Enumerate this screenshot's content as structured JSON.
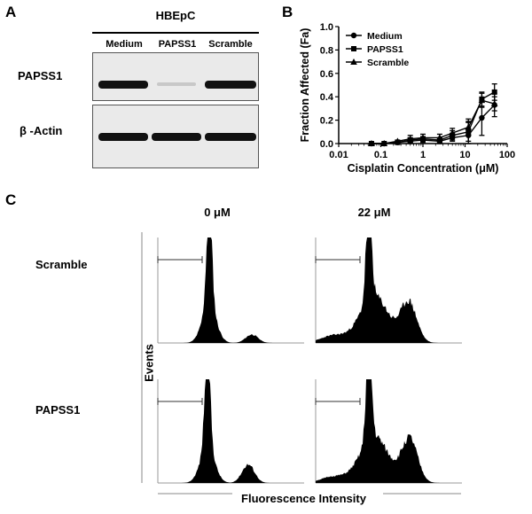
{
  "panel_a": {
    "letter": "A",
    "cell_line": "HBEpC",
    "lanes": [
      "Medium",
      "PAPSS1",
      "Scramble"
    ],
    "rows": [
      "PAPSS1",
      "β -Actin"
    ]
  },
  "panel_b": {
    "letter": "B"
  },
  "panel_c": {
    "letter": "C",
    "columns": [
      "0 μM",
      "22 μM"
    ],
    "rows": [
      "Scramble",
      "PAPSS1"
    ],
    "ylabel": "Events",
    "xlabel": "Fluorescence Intensity"
  },
  "chart_data": {
    "type": "line",
    "title": "",
    "xlabel": "Cisplatin Concentration (μM)",
    "ylabel": "Fraction Affected (Fa)",
    "xscale": "log",
    "xlim": [
      0.01,
      100
    ],
    "ylim": [
      0,
      1.0
    ],
    "xticks": [
      "0.01",
      "0.1",
      "1",
      "10",
      "100"
    ],
    "yticks": [
      "0.0",
      "0.2",
      "0.4",
      "0.6",
      "0.8",
      "1.0"
    ],
    "legend_position": "top-left",
    "series": [
      {
        "name": "Medium",
        "marker": "circle",
        "x": [
          0.06,
          0.12,
          0.25,
          0.5,
          1,
          2.5,
          5,
          12,
          25,
          50
        ],
        "y": [
          0.0,
          0.0,
          0.01,
          0.02,
          0.03,
          0.02,
          0.05,
          0.07,
          0.22,
          0.33
        ],
        "err": [
          0.0,
          0.0,
          0.01,
          0.02,
          0.02,
          0.02,
          0.03,
          0.12,
          0.15,
          0.1
        ]
      },
      {
        "name": "PAPSS1",
        "marker": "square",
        "x": [
          0.06,
          0.12,
          0.25,
          0.5,
          1,
          2.5,
          5,
          12,
          25,
          50
        ],
        "y": [
          0.0,
          0.0,
          0.01,
          0.03,
          0.04,
          0.03,
          0.07,
          0.1,
          0.38,
          0.44
        ],
        "err": [
          0.0,
          0.0,
          0.01,
          0.02,
          0.02,
          0.02,
          0.04,
          0.08,
          0.06,
          0.07
        ]
      },
      {
        "name": "Scramble",
        "marker": "triangle",
        "x": [
          0.06,
          0.12,
          0.25,
          0.5,
          1,
          2.5,
          5,
          12,
          25,
          50
        ],
        "y": [
          0.0,
          0.0,
          0.02,
          0.04,
          0.05,
          0.05,
          0.09,
          0.14,
          0.37,
          0.34
        ],
        "err": [
          0.0,
          0.0,
          0.01,
          0.03,
          0.03,
          0.03,
          0.04,
          0.07,
          0.06,
          0.06
        ]
      }
    ]
  }
}
